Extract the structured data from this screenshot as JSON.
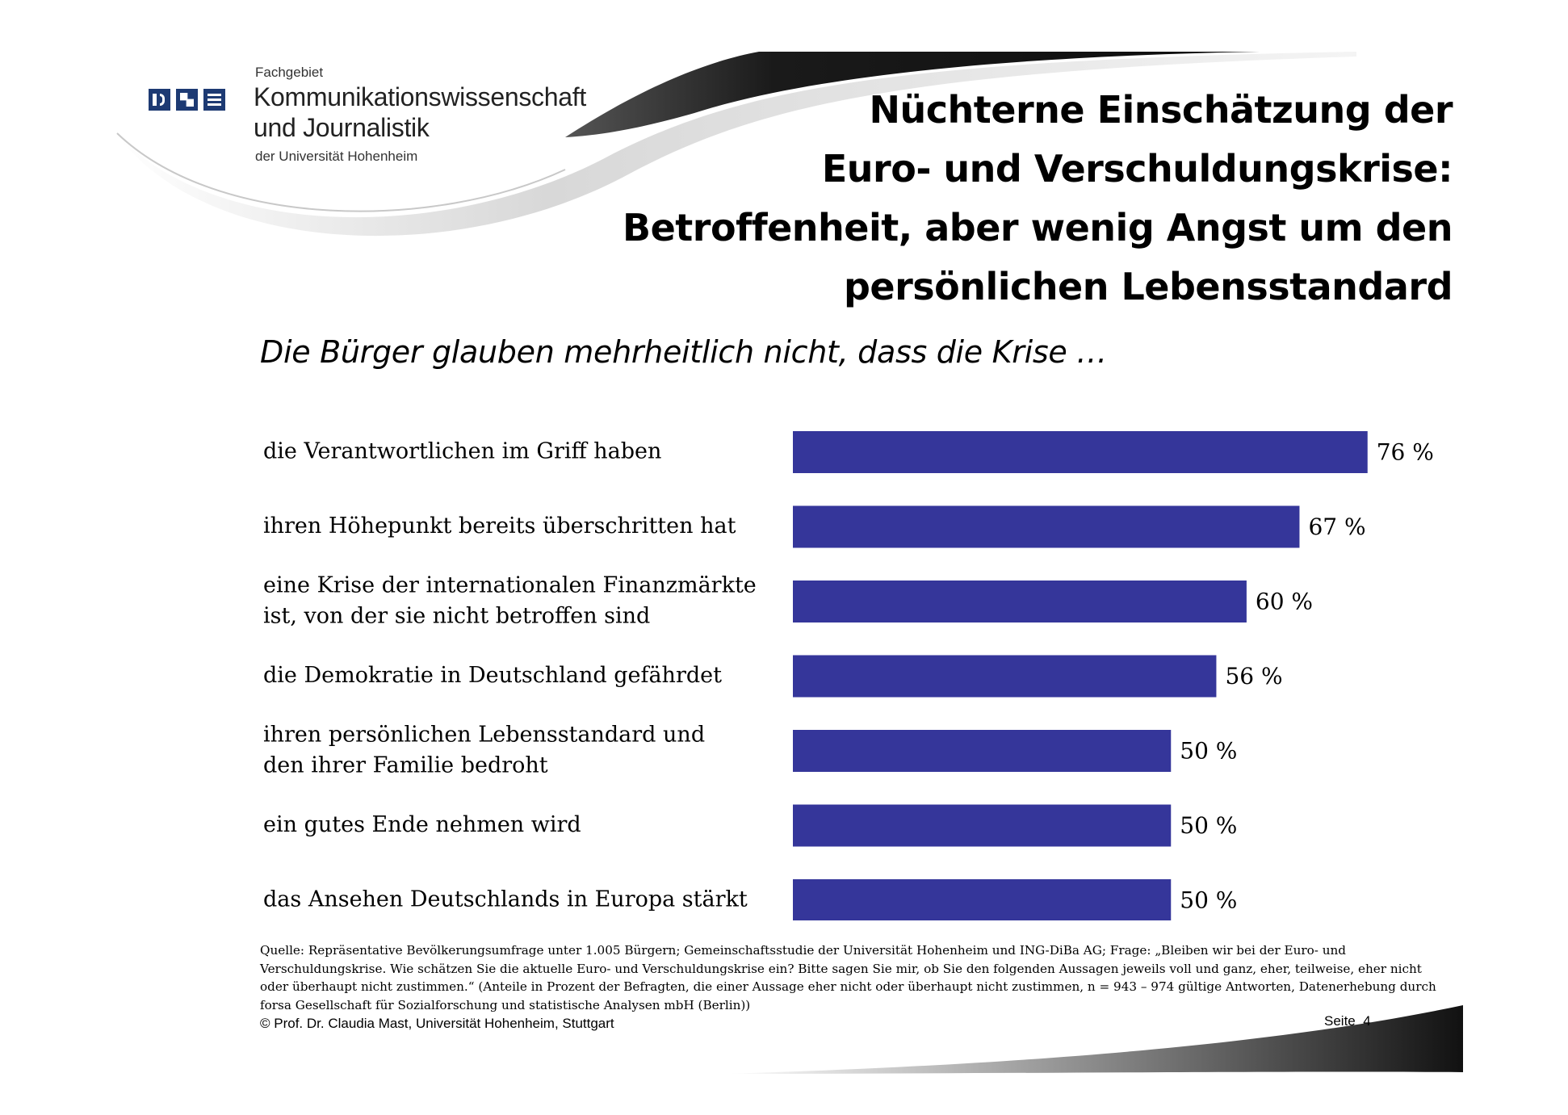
{
  "header": {
    "institute_small": "Fachgebiet",
    "institute_line1": "Kommunikationswissenschaft",
    "institute_line2": "und Journalistik",
    "institute_uni": "der Universität Hohenheim",
    "logo_icons": [
      "media-icon",
      "grid-icon",
      "text-lines-icon"
    ],
    "logo_color": "#1d3a73"
  },
  "title_lines": [
    "Nüchterne Einschätzung der",
    "Euro- und Verschuldungskrise:",
    "Betroffenheit, aber wenig Angst um den",
    "persönlichen Lebensstandard"
  ],
  "chart_data": {
    "type": "bar",
    "orientation": "horizontal",
    "subtitle": "Die Bürger glauben mehrheitlich nicht, dass die Krise …",
    "categories": [
      [
        "die Verantwortlichen im Griff haben"
      ],
      [
        "ihren Höhepunkt bereits überschritten hat"
      ],
      [
        "eine Krise der internationalen Finanzmärkte",
        "ist, von der sie nicht betroffen sind"
      ],
      [
        "die Demokratie in Deutschland gefährdet"
      ],
      [
        "ihren persönlichen Lebensstandard und",
        "den ihrer Familie bedroht"
      ],
      [
        "ein gutes Ende nehmen wird"
      ],
      [
        "das Ansehen Deutschlands in Europa stärkt"
      ]
    ],
    "values": [
      76,
      67,
      60,
      56,
      50,
      50,
      50
    ],
    "value_labels": [
      "76 %",
      "67 %",
      "60 %",
      "56 %",
      "50 %",
      "50 %",
      "50 %"
    ],
    "xlim": [
      0,
      100
    ],
    "bar_color": "#35369a",
    "grid": false,
    "legend": "none"
  },
  "footer": {
    "source_lines": [
      "Quelle: Repräsentative Bevölkerungsumfrage unter 1.005 Bürgern; Gemeinschaftsstudie der Universität Hohenheim und ING-DiBa AG; Frage: „Bleiben wir bei der Euro- und",
      "Verschuldungskrise. Wie schätzen Sie die aktuelle Euro- und Verschuldungskrise ein? Bitte sagen Sie mir, ob Sie den folgenden Aussagen jeweils voll und ganz, eher, teilweise, eher nicht",
      "oder überhaupt nicht zustimmen.“ (Anteile in Prozent der Befragten, die einer Aussage eher nicht oder überhaupt nicht zustimmen, n = 943 – 974 gültige Antworten, Datenerhebung durch",
      "forsa Gesellschaft für Sozialforschung und statistische Analysen mbH (Berlin))"
    ],
    "copyright": "© Prof. Dr. Claudia Mast, Universität Hohenheim, Stuttgart",
    "page_label": "Seite  4"
  }
}
